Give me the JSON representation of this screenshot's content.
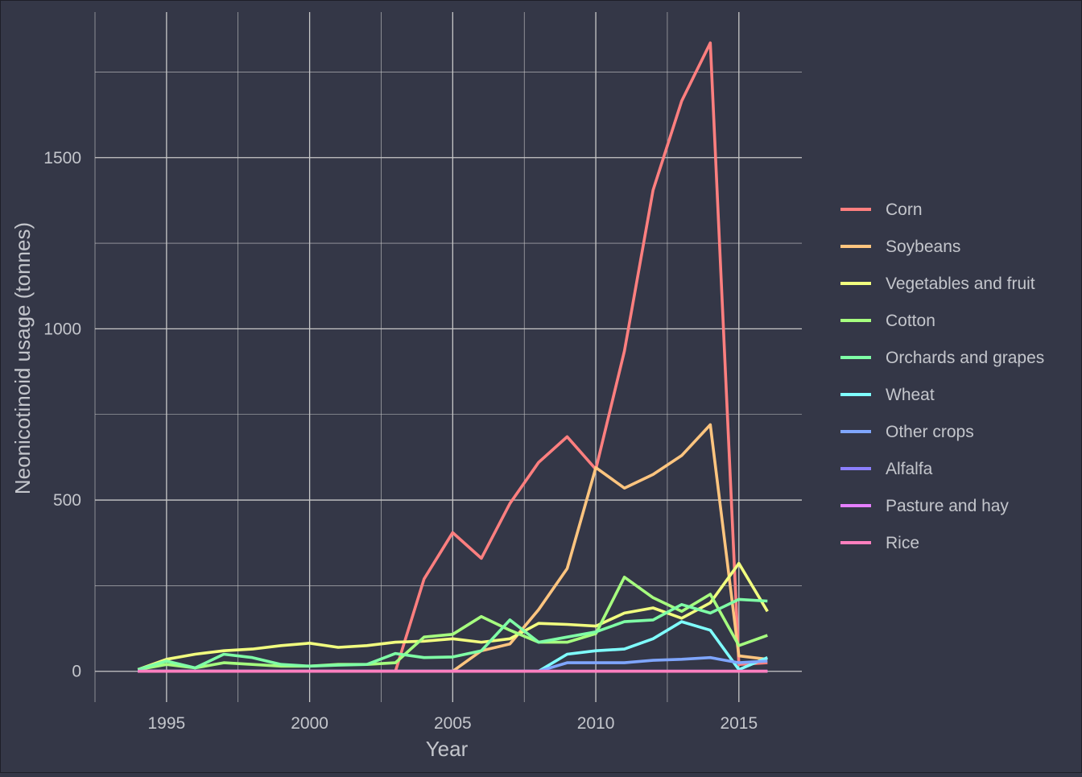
{
  "chart_data": {
    "type": "line",
    "title": "",
    "xlabel": "Year",
    "ylabel": "Neonicotinoid usage (tonnes)",
    "xlim": [
      1992.5,
      2017.2
    ],
    "ylim": [
      -90,
      1925
    ],
    "x_ticks": [
      1995,
      2000,
      2005,
      2010,
      2015
    ],
    "y_ticks": [
      0,
      500,
      1000,
      1500
    ],
    "grid": true,
    "legend_position": "right",
    "x": [
      1994,
      1995,
      1996,
      1997,
      1998,
      1999,
      2000,
      2001,
      2002,
      2003,
      2004,
      2005,
      2006,
      2007,
      2008,
      2009,
      2010,
      2011,
      2012,
      2013,
      2014,
      2015,
      2016
    ],
    "series": [
      {
        "name": "Corn",
        "color": "#ff7f7f",
        "values": [
          0,
          0,
          0,
          0,
          0,
          0,
          0,
          0,
          0,
          0,
          270,
          405,
          330,
          490,
          610,
          685,
          590,
          935,
          1405,
          1665,
          1835,
          20,
          25
        ]
      },
      {
        "name": "Soybeans",
        "color": "#ffc57f",
        "values": [
          0,
          0,
          0,
          0,
          0,
          0,
          0,
          0,
          0,
          0,
          0,
          0,
          60,
          80,
          180,
          300,
          595,
          535,
          575,
          630,
          720,
          45,
          35
        ]
      },
      {
        "name": "Vegetables and fruit",
        "color": "#f2ff7f",
        "values": [
          5,
          35,
          50,
          60,
          65,
          75,
          82,
          70,
          75,
          85,
          88,
          95,
          85,
          95,
          140,
          137,
          132,
          170,
          185,
          155,
          200,
          315,
          175
        ]
      },
      {
        "name": "Cotton",
        "color": "#a6ff7f",
        "values": [
          5,
          20,
          10,
          25,
          20,
          15,
          15,
          20,
          20,
          25,
          100,
          108,
          160,
          120,
          85,
          85,
          110,
          275,
          215,
          175,
          225,
          75,
          105
        ]
      },
      {
        "name": "Orchards and grapes",
        "color": "#7fffa6",
        "values": [
          5,
          30,
          10,
          50,
          40,
          20,
          15,
          18,
          20,
          52,
          40,
          42,
          60,
          150,
          85,
          100,
          115,
          145,
          150,
          195,
          170,
          210,
          205
        ]
      },
      {
        "name": "Wheat",
        "color": "#7fffff",
        "values": [
          0,
          0,
          0,
          0,
          0,
          0,
          0,
          0,
          0,
          0,
          0,
          0,
          0,
          0,
          0,
          50,
          60,
          65,
          95,
          145,
          120,
          5,
          40
        ]
      },
      {
        "name": "Other crops",
        "color": "#7fa6ff",
        "values": [
          0,
          0,
          0,
          0,
          0,
          0,
          0,
          0,
          0,
          0,
          0,
          0,
          0,
          0,
          0,
          25,
          25,
          25,
          32,
          35,
          40,
          25,
          30
        ]
      },
      {
        "name": "Alfalfa",
        "color": "#8c7fff",
        "values": [
          0,
          0,
          0,
          0,
          0,
          0,
          0,
          0,
          0,
          0,
          0,
          0,
          0,
          0,
          0,
          0,
          0,
          0,
          0,
          0,
          0,
          0,
          0
        ]
      },
      {
        "name": "Pasture and hay",
        "color": "#e57fff",
        "values": [
          0,
          0,
          0,
          0,
          0,
          0,
          0,
          0,
          0,
          0,
          0,
          0,
          0,
          0,
          0,
          0,
          0,
          0,
          0,
          0,
          0,
          0,
          0
        ]
      },
      {
        "name": "Rice",
        "color": "#ff7fbf",
        "values": [
          0,
          0,
          0,
          0,
          0,
          0,
          0,
          0,
          0,
          0,
          0,
          0,
          0,
          0,
          0,
          0,
          0,
          0,
          0,
          0,
          0,
          0,
          0
        ]
      }
    ]
  },
  "colors": {
    "background": "#343747",
    "grid": "#c8c8c8",
    "text": "#c4c6cc"
  }
}
